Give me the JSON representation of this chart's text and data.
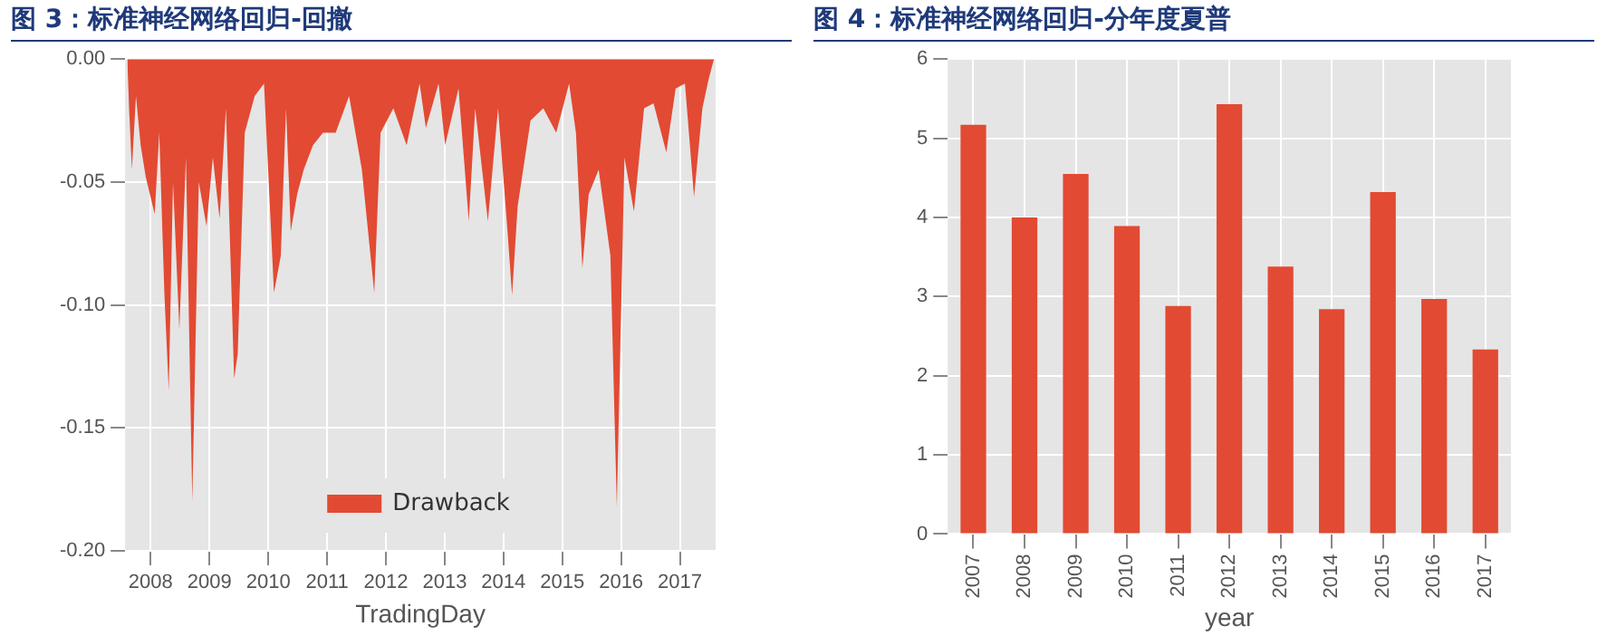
{
  "chart_data": [
    {
      "type": "area",
      "title": "图 3：标准神经网络回归-回撤",
      "xlabel": "TradingDay",
      "legend": "bottom",
      "grid": true,
      "xlim": [
        "2007-07-25",
        "2017-08-10"
      ],
      "xticks": [
        "2008",
        "2009",
        "2010",
        "2011",
        "2012",
        "2013",
        "2014",
        "2015",
        "2016",
        "2017"
      ],
      "ylim": [
        -0.2,
        0
      ],
      "yticks": [
        {
          "value": 0,
          "label": "0.00"
        },
        {
          "value": -0.05,
          "label": "-0.05"
        },
        {
          "value": -0.1,
          "label": "-0.10"
        },
        {
          "value": -0.15,
          "label": "-0.15"
        },
        {
          "value": -0.2,
          "label": "-0.20"
        }
      ],
      "x": [
        "2007-08-08",
        "2007-08-19",
        "2007-09-06",
        "2007-10-01",
        "2007-10-30",
        "2007-12-01",
        "2008-01-26",
        "2008-02-24",
        "2008-03-25",
        "2008-04-22",
        "2008-05-18",
        "2008-06-27",
        "2008-08-07",
        "2008-09-16",
        "2008-10-26",
        "2008-12-13",
        "2009-01-22",
        "2009-03-03",
        "2009-04-12",
        "2009-06-02",
        "2009-06-24",
        "2009-08-07",
        "2009-10-08",
        "2009-12-05",
        "2010-02-06",
        "2010-03-18",
        "2010-04-20",
        "2010-05-19",
        "2010-06-28",
        "2010-08-08",
        "2010-10-05",
        "2010-12-06",
        "2011-02-24",
        "2011-05-16",
        "2011-08-04",
        "2011-10-20",
        "2011-11-29",
        "2012-02-17",
        "2012-05-08",
        "2012-07-28",
        "2012-09-06",
        "2012-11-24",
        "2013-01-04",
        "2013-03-26",
        "2013-05-29",
        "2013-07-08",
        "2013-09-26",
        "2013-11-28",
        "2014-01-26",
        "2014-02-24",
        "2014-03-28",
        "2014-06-17",
        "2014-09-05",
        "2014-11-24",
        "2015-02-13",
        "2015-03-25",
        "2015-05-04",
        "2015-06-13",
        "2015-08-14",
        "2015-10-26",
        "2015-12-05",
        "2016-01-22",
        "2016-03-20",
        "2016-05-22",
        "2016-07-20",
        "2016-10-08",
        "2016-12-05",
        "2017-02-02",
        "2017-03-28",
        "2017-05-19",
        "2017-06-28",
        "2017-07-30"
      ],
      "series": [
        {
          "name": "Drawback",
          "color": "#e24a33",
          "values": [
            0,
            -0.02,
            -0.045,
            -0.015,
            -0.035,
            -0.048,
            -0.063,
            -0.03,
            -0.095,
            -0.135,
            -0.05,
            -0.11,
            -0.04,
            -0.18,
            -0.05,
            -0.068,
            -0.04,
            -0.065,
            -0.02,
            -0.13,
            -0.12,
            -0.03,
            -0.015,
            -0.01,
            -0.095,
            -0.08,
            -0.02,
            -0.07,
            -0.055,
            -0.045,
            -0.035,
            -0.03,
            -0.03,
            -0.015,
            -0.045,
            -0.095,
            -0.03,
            -0.02,
            -0.035,
            -0.01,
            -0.028,
            -0.01,
            -0.035,
            -0.012,
            -0.066,
            -0.02,
            -0.066,
            -0.02,
            -0.07,
            -0.096,
            -0.06,
            -0.025,
            -0.02,
            -0.03,
            -0.01,
            -0.03,
            -0.085,
            -0.055,
            -0.045,
            -0.08,
            -0.182,
            -0.04,
            -0.062,
            -0.02,
            -0.018,
            -0.038,
            -0.012,
            -0.01,
            -0.056,
            -0.02,
            -0.008,
            0
          ]
        }
      ]
    },
    {
      "type": "bar",
      "title": "图 4：标准神经网络回归-分年度夏普",
      "xlabel": "year",
      "grid": true,
      "color": "#e24a33",
      "categories": [
        "2007",
        "2008",
        "2009",
        "2010",
        "2011",
        "2012",
        "2013",
        "2014",
        "2015",
        "2016",
        "2017"
      ],
      "values": [
        5.17,
        4.0,
        4.55,
        3.89,
        2.88,
        5.43,
        3.38,
        2.84,
        4.32,
        2.97,
        2.33
      ],
      "ylim": [
        0,
        6
      ],
      "yticks": [
        0,
        1,
        2,
        3,
        4,
        5,
        6
      ]
    }
  ]
}
